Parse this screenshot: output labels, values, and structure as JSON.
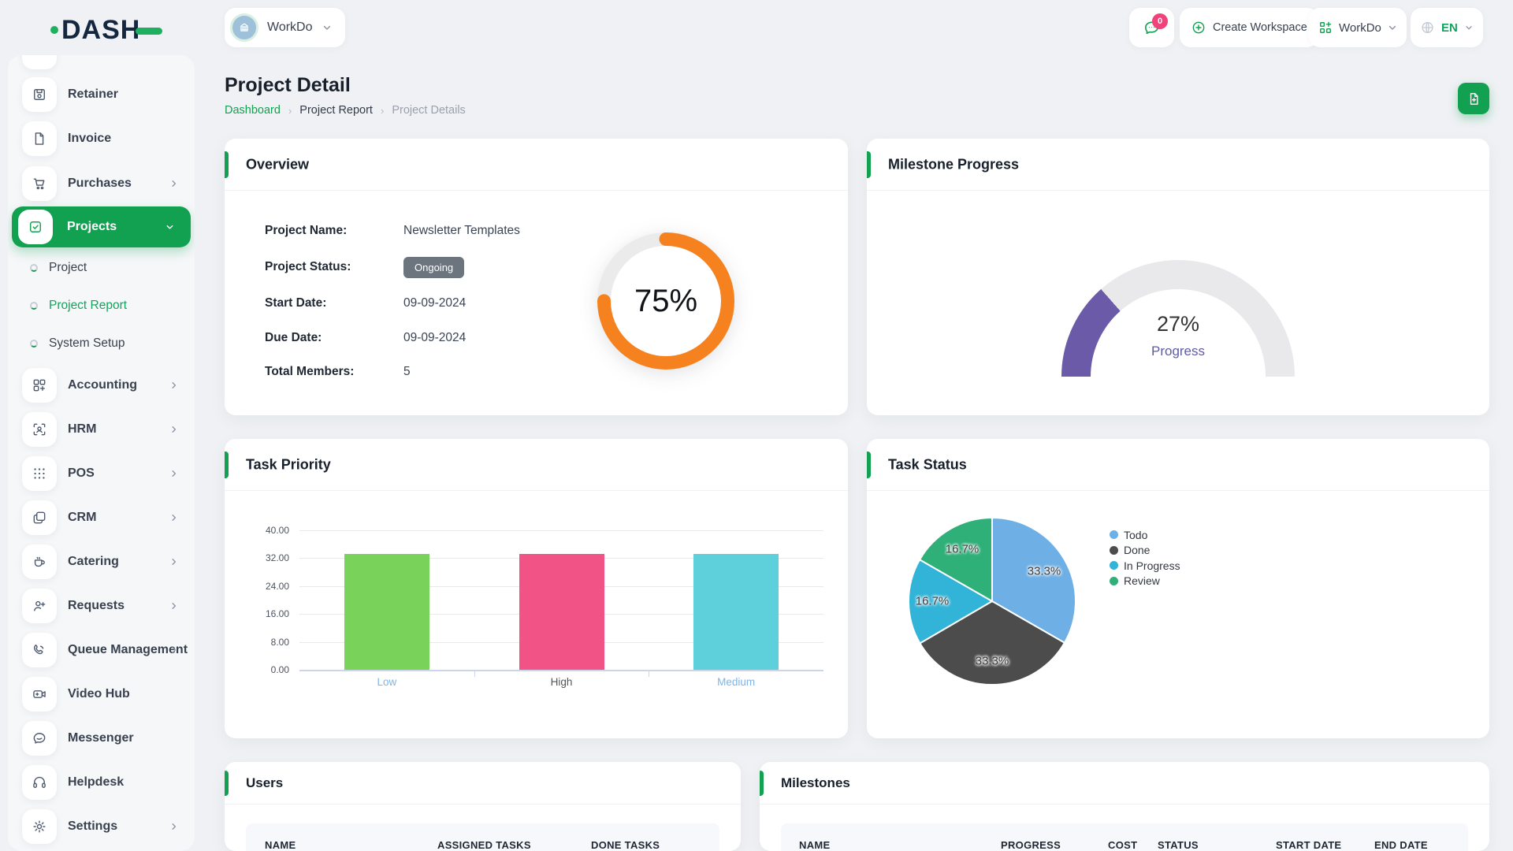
{
  "theme": {
    "accent": "#12a150",
    "orange": "#f6821f",
    "purple": "#6a5aa8",
    "badge_pink": "#f0437c"
  },
  "brand": {
    "name": "DASH"
  },
  "topbar": {
    "workspace_switcher": {
      "label": "WorkDo"
    },
    "messages_badge": "0",
    "create_workspace_label": "Create Workspace",
    "workdo_menu_label": "WorkDo",
    "language": "EN"
  },
  "sidebar": {
    "items": [
      {
        "label": "Retainer",
        "icon": "retainer-icon"
      },
      {
        "label": "Invoice",
        "icon": "invoice-icon"
      },
      {
        "label": "Purchases",
        "icon": "purchases-icon",
        "expandable": true
      },
      {
        "label": "Projects",
        "icon": "projects-icon",
        "active": true,
        "expanded": true
      },
      {
        "label": "Project",
        "sub": true
      },
      {
        "label": "Project Report",
        "sub": true,
        "active": true
      },
      {
        "label": "System Setup",
        "sub": true
      },
      {
        "label": "Accounting",
        "icon": "accounting-icon",
        "expandable": true
      },
      {
        "label": "HRM",
        "icon": "hrm-icon",
        "expandable": true
      },
      {
        "label": "POS",
        "icon": "pos-icon",
        "expandable": true
      },
      {
        "label": "CRM",
        "icon": "crm-icon",
        "expandable": true
      },
      {
        "label": "Catering",
        "icon": "catering-icon",
        "expandable": true
      },
      {
        "label": "Requests",
        "icon": "requests-icon",
        "expandable": true
      },
      {
        "label": "Queue Management",
        "icon": "queue-icon",
        "expandable": true
      },
      {
        "label": "Video Hub",
        "icon": "video-icon"
      },
      {
        "label": "Messenger",
        "icon": "messenger-icon"
      },
      {
        "label": "Helpdesk",
        "icon": "helpdesk-icon"
      },
      {
        "label": "Settings",
        "icon": "settings-icon",
        "expandable": true
      }
    ]
  },
  "page": {
    "title": "Project Detail",
    "breadcrumbs": [
      {
        "label": "Dashboard",
        "style": "link"
      },
      {
        "label": "Project Report",
        "style": "mid"
      },
      {
        "label": "Project Details",
        "style": "current"
      }
    ]
  },
  "overview": {
    "title": "Overview",
    "fields": [
      {
        "label": "Project Name:",
        "value": "Newsletter Templates"
      },
      {
        "label": "Project Status:",
        "value": "Ongoing",
        "badge": true
      },
      {
        "label": "Start Date:",
        "value": "09-09-2024"
      },
      {
        "label": "Due Date:",
        "value": "09-09-2024"
      },
      {
        "label": "Total Members:",
        "value": "5"
      }
    ]
  },
  "milestone_progress": {
    "title": "Milestone Progress"
  },
  "task_priority": {
    "title": "Task Priority"
  },
  "task_status": {
    "title": "Task Status"
  },
  "users_table": {
    "title": "Users",
    "columns": [
      "NAME",
      "ASSIGNED TASKS",
      "DONE TASKS"
    ]
  },
  "milestones_table": {
    "title": "Milestones",
    "columns": [
      "NAME",
      "PROGRESS",
      "COST",
      "STATUS",
      "START DATE",
      "END DATE"
    ]
  },
  "chart_data": [
    {
      "type": "donut",
      "title": "Overview completion",
      "value": 75,
      "max": 100,
      "center_label": "75%",
      "color": "#f6821f",
      "track": "#ebebeb"
    },
    {
      "type": "gauge",
      "title": "Milestone Progress",
      "value": 27,
      "max": 100,
      "center_label": "27%",
      "sub_label": "Progress",
      "color": "#6a5aa8",
      "track": "#e9e9ec"
    },
    {
      "type": "bar",
      "title": "Task Priority",
      "categories": [
        "Low",
        "High",
        "Medium"
      ],
      "values": [
        33.33,
        33.33,
        33.33
      ],
      "colors": [
        "#79d35a",
        "#f25387",
        "#5ed0dc"
      ],
      "category_colors": [
        "#7cb5ec",
        "#555555",
        "#7cb5ec"
      ],
      "ylim": [
        0,
        40
      ],
      "yticks": [
        "0.00",
        "8.00",
        "16.00",
        "24.00",
        "32.00",
        "40.00"
      ],
      "grid": true,
      "legend": "none"
    },
    {
      "type": "pie",
      "title": "Task Status",
      "legend_position": "top-right",
      "slices": [
        {
          "label": "Todo",
          "value": 33.3,
          "display": "33.3%",
          "color": "#6eb0e6"
        },
        {
          "label": "Done",
          "value": 33.3,
          "display": "33.3%",
          "color": "#4c4c4c"
        },
        {
          "label": "In Progress",
          "value": 16.7,
          "display": "16.7%",
          "color": "#32b4d8"
        },
        {
          "label": "Review",
          "value": 16.7,
          "display": "16.7%",
          "color": "#2fb079"
        }
      ]
    }
  ]
}
